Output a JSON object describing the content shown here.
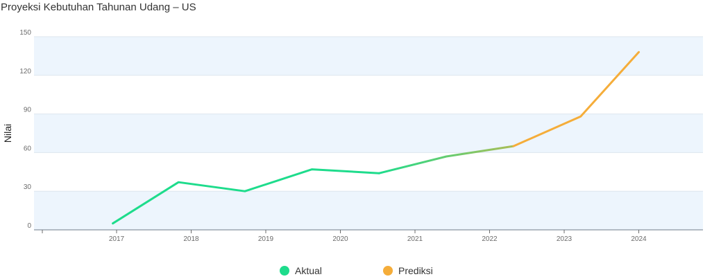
{
  "title": "Proyeksi Kebutuhan Tahunan Udang – US",
  "chart_data": {
    "type": "line",
    "title": "Proyeksi Kebutuhan Tahunan Udang – US",
    "ylabel": "Nilai",
    "xlabel": "",
    "ylim": [
      0,
      150
    ],
    "yticks": [
      0,
      30,
      60,
      90,
      120,
      150
    ],
    "xticks": [
      "2017",
      "2018",
      "2019",
      "2020",
      "2021",
      "2022",
      "2023",
      "2024"
    ],
    "series": [
      {
        "name": "Aktual",
        "color": "#1edc8c",
        "points": [
          {
            "x": 2016.95,
            "y": 5
          },
          {
            "x": 2017.83,
            "y": 37
          },
          {
            "x": 2018.72,
            "y": 30
          },
          {
            "x": 2019.62,
            "y": 47
          },
          {
            "x": 2020.52,
            "y": 44
          },
          {
            "x": 2021.42,
            "y": 57
          }
        ]
      },
      {
        "name": "Prediksi",
        "color": "#f5ad3a",
        "points": [
          {
            "x": 2021.42,
            "y": 57
          },
          {
            "x": 2022.32,
            "y": 65
          },
          {
            "x": 2023.22,
            "y": 88
          },
          {
            "x": 2024.0,
            "y": 138
          }
        ]
      }
    ],
    "grid": true,
    "band_color": "#edf5fd",
    "legend_position": "bottom-center"
  },
  "legend": [
    {
      "label": "Aktual",
      "color": "#1edc8c"
    },
    {
      "label": "Prediksi",
      "color": "#f5ad3a"
    }
  ]
}
